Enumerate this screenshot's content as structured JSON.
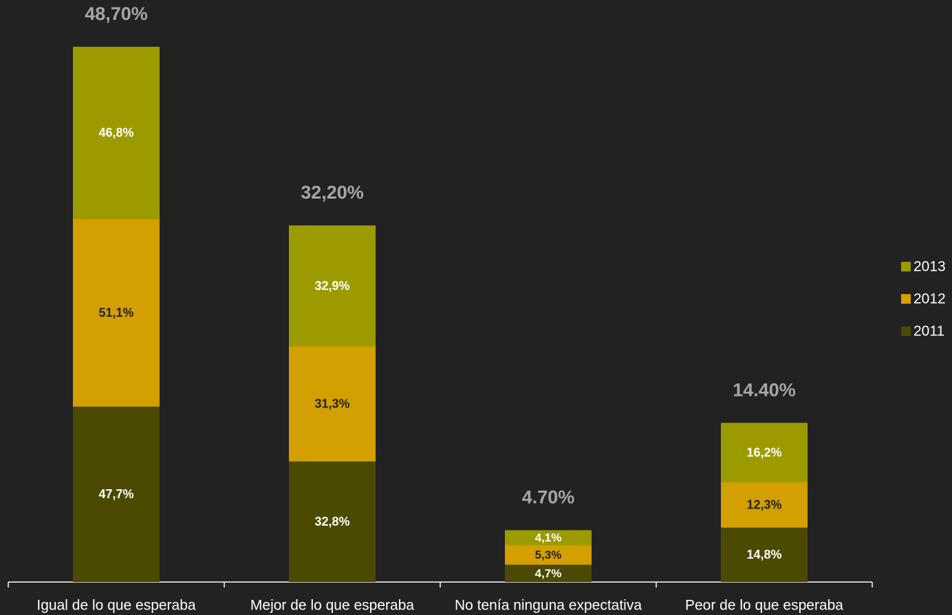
{
  "chart_data": {
    "type": "stacked_bar",
    "categories": [
      "Igual de lo que esperaba",
      "Mejor de lo que esperaba",
      "No tenía ninguna expectativa",
      "Peor de lo que esperaba"
    ],
    "series": [
      {
        "name": "2011",
        "color": "#4b4a00",
        "label_color": "#ffffff",
        "values": [
          47.7,
          32.8,
          4.7,
          14.8
        ],
        "value_labels": [
          "47,7%",
          "32,8%",
          "4,7%",
          "14,8%"
        ]
      },
      {
        "name": "2012",
        "color": "#d49f00",
        "label_color": "#222222",
        "values": [
          51.1,
          31.3,
          5.3,
          12.3
        ],
        "value_labels": [
          "51,1%",
          "31,3%",
          "5,3%",
          "12,3%"
        ]
      },
      {
        "name": "2013",
        "color": "#9b9b00",
        "label_color": "#ffffff",
        "values": [
          46.8,
          32.9,
          4.1,
          16.2
        ],
        "value_labels": [
          "46,8%",
          "32,9%",
          "4,1%",
          "16,2%"
        ]
      }
    ],
    "totals": {
      "values": [
        48.7,
        32.2,
        4.7,
        14.4
      ],
      "value_labels": [
        "48,70%",
        "32,20%",
        "4.70%",
        "14.40%"
      ]
    },
    "ylim": [
      0,
      150
    ],
    "legend": "right"
  }
}
